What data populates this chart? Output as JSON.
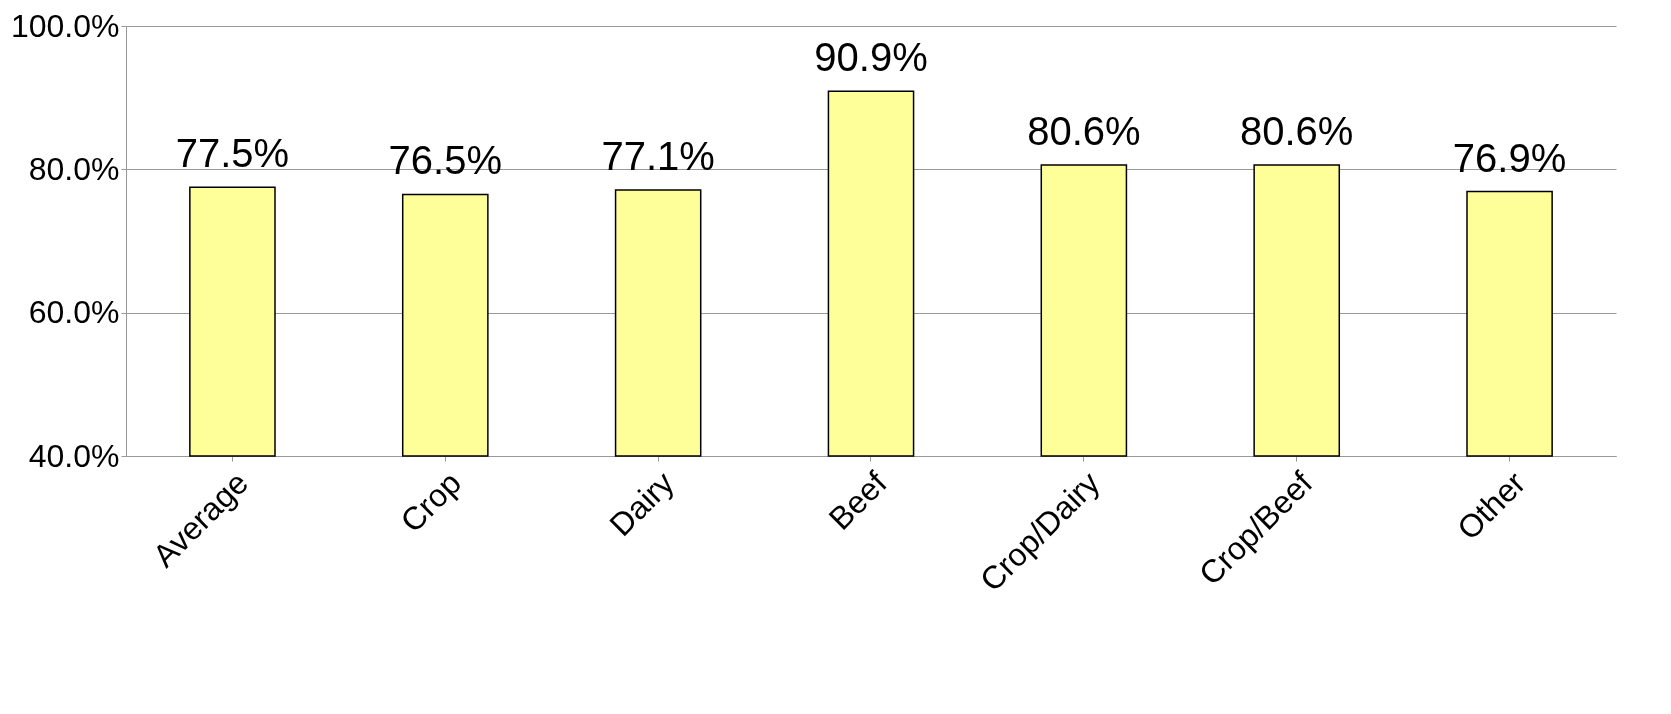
{
  "chart_data": {
    "type": "bar",
    "categories": [
      "Average",
      "Crop",
      "Dairy",
      "Beef",
      "Crop/Dairy",
      "Crop/Beef",
      "Other"
    ],
    "values": [
      77.5,
      76.5,
      77.1,
      90.9,
      80.6,
      80.6,
      76.9
    ],
    "value_labels": [
      "77.5%",
      "76.5%",
      "77.1%",
      "90.9%",
      "80.6%",
      "80.6%",
      "76.9%"
    ],
    "color": "#ffff99",
    "ylim": [
      40,
      100
    ],
    "yticks": [
      {
        "value": 40,
        "label": "40.0%"
      },
      {
        "value": 60,
        "label": "60.0%"
      },
      {
        "value": 80,
        "label": "80.0%"
      },
      {
        "value": 100,
        "label": "100.0%"
      }
    ],
    "grid": "y"
  }
}
